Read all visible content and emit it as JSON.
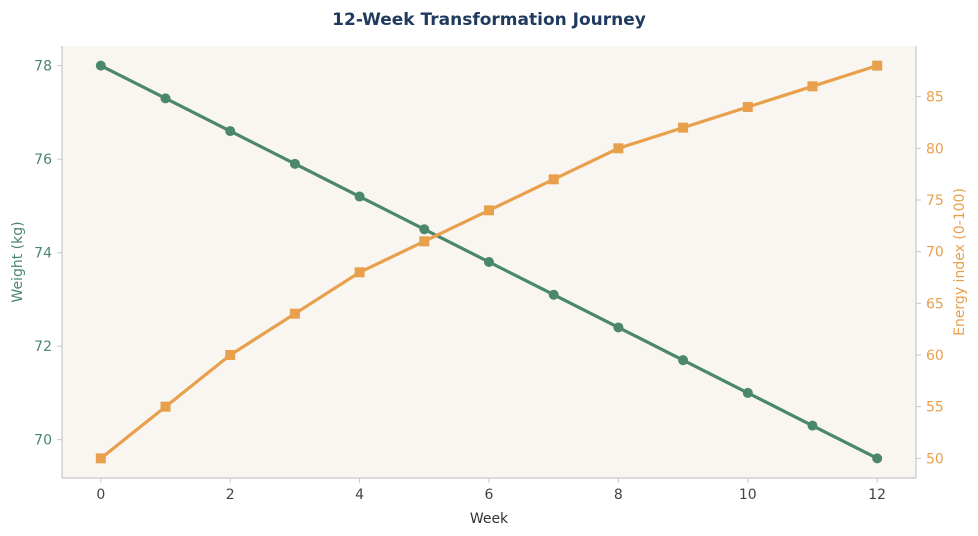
{
  "chart_data": {
    "type": "line",
    "title": "12-Week Transformation Journey",
    "xlabel": "Week",
    "x": [
      0,
      1,
      2,
      3,
      4,
      5,
      6,
      7,
      8,
      9,
      10,
      11,
      12
    ],
    "xticks": [
      0,
      2,
      4,
      6,
      8,
      10,
      12
    ],
    "xlim": [
      -0.6,
      12.6
    ],
    "series": [
      {
        "name": "Weight (kg)",
        "axis": "left",
        "marker": "circle",
        "color": "#4a876b",
        "values": [
          78.0,
          77.3,
          76.6,
          75.9,
          75.2,
          74.5,
          73.8,
          73.1,
          72.4,
          71.7,
          71.0,
          70.3,
          69.6
        ]
      },
      {
        "name": "Energy index (0-100)",
        "axis": "right",
        "marker": "square",
        "color": "#e8a04c",
        "values": [
          50,
          55,
          60,
          64,
          68,
          71,
          74,
          77,
          80,
          82,
          84,
          86,
          88
        ]
      }
    ],
    "left_axis": {
      "label": "Weight (kg)",
      "ticks": [
        70,
        72,
        74,
        76,
        78
      ],
      "ylim": [
        69.18,
        78.42
      ],
      "color": "#4a876b"
    },
    "right_axis": {
      "label": "Energy index (0-100)",
      "ticks": [
        50,
        55,
        60,
        65,
        70,
        75,
        80,
        85
      ],
      "ylim": [
        48.1,
        89.9
      ],
      "color": "#e8a04c"
    },
    "grid": false,
    "plot_background": "#f9f5f0",
    "title_color": "#1f3a5f"
  }
}
